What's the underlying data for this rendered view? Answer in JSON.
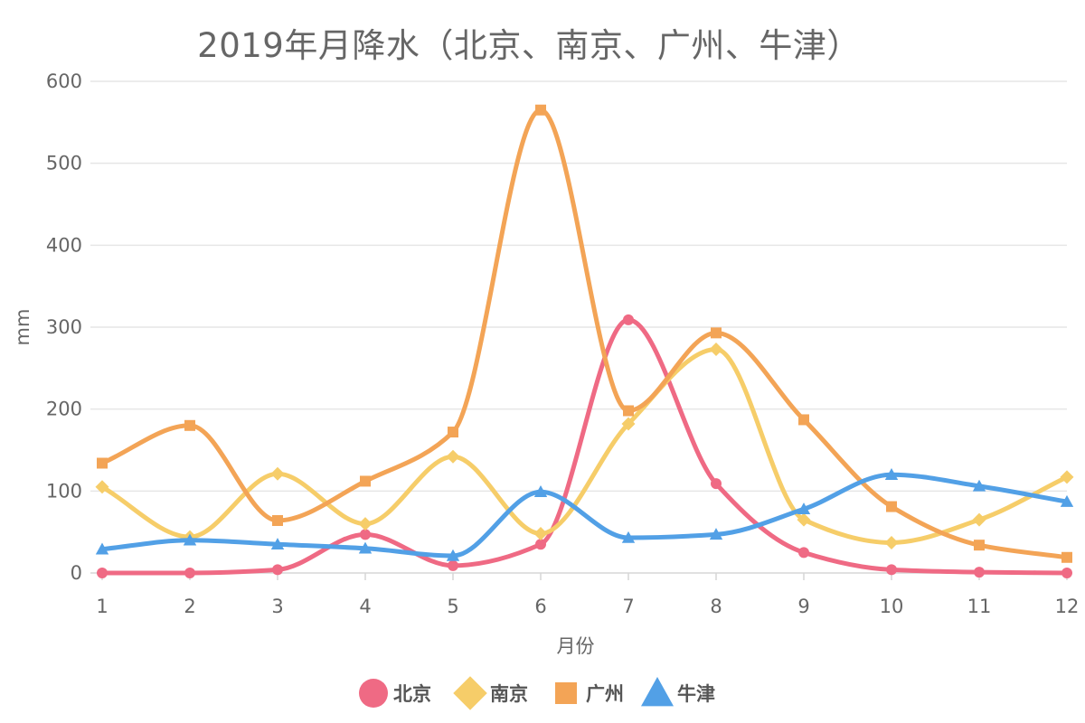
{
  "chart_data": {
    "type": "line",
    "title": "2019年月降水（北京、南京、广州、牛津）",
    "xlabel": "月份",
    "ylabel": "mm",
    "categories": [
      "1",
      "2",
      "3",
      "4",
      "5",
      "6",
      "7",
      "8",
      "9",
      "10",
      "11",
      "12"
    ],
    "ylim": [
      0,
      600
    ],
    "yticks": [
      0,
      100,
      200,
      300,
      400,
      500,
      600
    ],
    "grid": true,
    "legend_position": "bottom",
    "smooth": true,
    "series": [
      {
        "name": "北京",
        "color": "#ef6a84",
        "marker": "circle",
        "values": [
          0,
          0,
          4,
          47,
          9,
          35,
          309,
          109,
          25,
          4,
          1,
          0
        ]
      },
      {
        "name": "南京",
        "color": "#f6cd69",
        "marker": "diamond",
        "values": [
          105,
          44,
          121,
          60,
          142,
          48,
          182,
          273,
          65,
          37,
          65,
          117
        ]
      },
      {
        "name": "广州",
        "color": "#f3a456",
        "marker": "square",
        "values": [
          134,
          180,
          64,
          112,
          172,
          565,
          198,
          293,
          187,
          81,
          34,
          19
        ]
      },
      {
        "name": "牛津",
        "color": "#52a0e6",
        "marker": "triangle",
        "values": [
          29,
          40,
          35,
          30,
          21,
          99,
          43,
          47,
          78,
          120,
          106,
          87
        ]
      }
    ]
  }
}
